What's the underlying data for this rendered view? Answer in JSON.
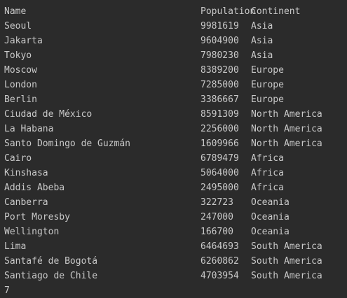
{
  "console": {
    "header": {
      "name": "Name",
      "population": "Population",
      "continent": "Continent"
    },
    "rows": [
      {
        "name": "Seoul",
        "population": "9981619",
        "continent": "Asia"
      },
      {
        "name": "Jakarta",
        "population": "9604900",
        "continent": "Asia"
      },
      {
        "name": "Tokyo",
        "population": "7980230",
        "continent": "Asia"
      },
      {
        "name": "Moscow",
        "population": "8389200",
        "continent": "Europe"
      },
      {
        "name": "London",
        "population": "7285000",
        "continent": "Europe"
      },
      {
        "name": "Berlin",
        "population": "3386667",
        "continent": "Europe"
      },
      {
        "name": "Ciudad de México",
        "population": "8591309",
        "continent": "North America"
      },
      {
        "name": "La Habana",
        "population": "2256000",
        "continent": "North America"
      },
      {
        "name": "Santo Domingo de Guzmán",
        "population": "1609966",
        "continent": "North America"
      },
      {
        "name": "Cairo",
        "population": "6789479",
        "continent": "Africa"
      },
      {
        "name": "Kinshasa",
        "population": "5064000",
        "continent": "Africa"
      },
      {
        "name": "Addis Abeba",
        "population": "2495000",
        "continent": "Africa"
      },
      {
        "name": "Canberra",
        "population": "322723",
        "continent": "Oceania"
      },
      {
        "name": "Port Moresby",
        "population": "247000",
        "continent": "Oceania"
      },
      {
        "name": "Wellington",
        "population": "166700",
        "continent": "Oceania"
      },
      {
        "name": "Lima",
        "population": "6464693",
        "continent": "South America"
      },
      {
        "name": "Santafé de Bogotá",
        "population": "6260862",
        "continent": "South America"
      },
      {
        "name": "Santiago de Chile",
        "population": "4703954",
        "continent": "South America"
      }
    ],
    "trailing_output": "7"
  },
  "colors": {
    "background": "#2b2b2b",
    "text": "#c9c9c9"
  }
}
